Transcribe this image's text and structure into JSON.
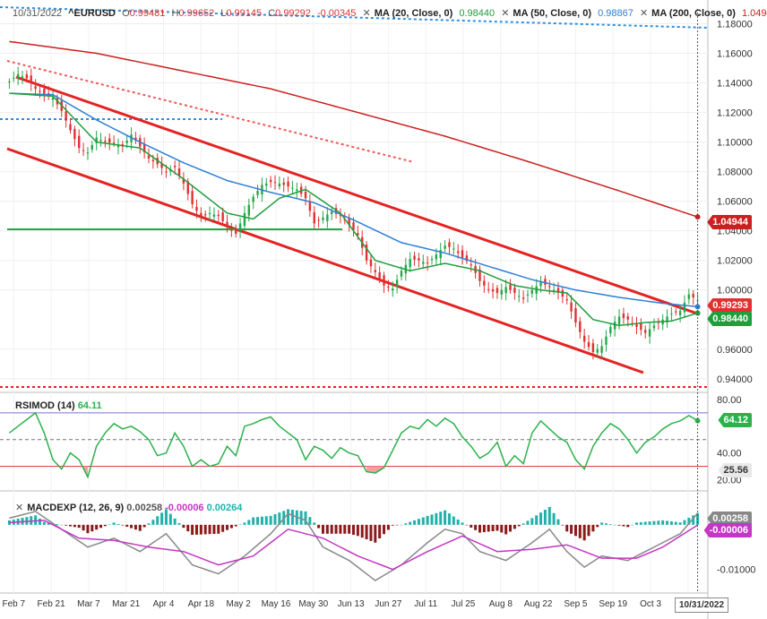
{
  "header": {
    "date": "10/31/2022",
    "symbol": "^EURUSD",
    "ohlc": {
      "open_label": "O",
      "open": "0.99481",
      "high_label": "H",
      "high": "0.99652",
      "low_label": "L",
      "low": "0.99145",
      "close_label": "C",
      "close": "0.99292",
      "change": "-0.00345"
    },
    "ma20": {
      "label": "MA (20, Close, 0)",
      "value": "0.98440"
    },
    "ma50": {
      "label": "MA (50, Close, 0)",
      "value": "0.98867"
    },
    "ma200": {
      "label": "MA (200, Close, 0)",
      "value": "1.04944"
    }
  },
  "rsi_header": {
    "label": "RSIMOD (14)",
    "value": "64.11"
  },
  "macd_header": {
    "label": "MACDEXP (12, 26, 9)",
    "v1": "0.00258",
    "v2": "-0.00006",
    "v3": "0.00264"
  },
  "badges": {
    "ma200": "1.04944",
    "close": "0.99293",
    "ma20": "0.98440",
    "rsi": "64.12",
    "rsi_low": "25.56",
    "macd": "0.00258",
    "signal": "-0.00006"
  },
  "cursor_date": "10/31/2022",
  "colors": {
    "candle_up": "#22a84a",
    "candle_down": "#e03131",
    "ma20": "#1f9e3c",
    "ma50": "#2f7fd6",
    "ma200": "#cc1f1f",
    "rsi": "#2bb24c",
    "macd": "#888888",
    "signal": "#c436c4",
    "hist_pos": "#20b2aa",
    "hist_neg": "#8b1a1a"
  },
  "chart_data": [
    {
      "type": "candlestick",
      "title": "^EURUSD",
      "x_ticks": [
        "Feb 7",
        "Feb 21",
        "Mar 7",
        "Mar 21",
        "Apr 4",
        "Apr 18",
        "May 2",
        "May 16",
        "May 30",
        "Jun 13",
        "Jun 27",
        "Jul 11",
        "Jul 25",
        "Aug 8",
        "Aug 22",
        "Sep 5",
        "Sep 19",
        "Oct 3",
        "Oct 17"
      ],
      "y_ticks": [
        "1.18000",
        "1.16000",
        "1.14000",
        "1.12000",
        "1.10000",
        "1.08000",
        "1.06000",
        "1.04000",
        "1.02000",
        "1.00000",
        "0.96000",
        "0.94000"
      ],
      "ylim": [
        0.932,
        1.19
      ],
      "close_anchors": [
        [
          0,
          1.141
        ],
        [
          2,
          1.146
        ],
        [
          4,
          1.143
        ],
        [
          6,
          1.136
        ],
        [
          8,
          1.132
        ],
        [
          10,
          1.13
        ],
        [
          12,
          1.121
        ],
        [
          14,
          1.108
        ],
        [
          16,
          1.096
        ],
        [
          18,
          1.093
        ],
        [
          20,
          1.103
        ],
        [
          22,
          1.1
        ],
        [
          24,
          1.099
        ],
        [
          26,
          1.097
        ],
        [
          28,
          1.105
        ],
        [
          30,
          1.097
        ],
        [
          32,
          1.089
        ],
        [
          34,
          1.085
        ],
        [
          36,
          1.08
        ],
        [
          38,
          1.083
        ],
        [
          40,
          1.072
        ],
        [
          42,
          1.058
        ],
        [
          44,
          1.049
        ],
        [
          46,
          1.052
        ],
        [
          48,
          1.05
        ],
        [
          50,
          1.043
        ],
        [
          52,
          1.038
        ],
        [
          54,
          1.052
        ],
        [
          56,
          1.063
        ],
        [
          58,
          1.071
        ],
        [
          60,
          1.073
        ],
        [
          62,
          1.072
        ],
        [
          64,
          1.07
        ],
        [
          66,
          1.068
        ],
        [
          68,
          1.062
        ],
        [
          70,
          1.045
        ],
        [
          72,
          1.049
        ],
        [
          74,
          1.053
        ],
        [
          76,
          1.05
        ],
        [
          78,
          1.044
        ],
        [
          80,
          1.037
        ],
        [
          82,
          1.02
        ],
        [
          84,
          1.012
        ],
        [
          86,
          1.003
        ],
        [
          88,
          1.001
        ],
        [
          90,
          1.013
        ],
        [
          92,
          1.021
        ],
        [
          94,
          1.02
        ],
        [
          96,
          1.018
        ],
        [
          98,
          1.024
        ],
        [
          100,
          1.03
        ],
        [
          102,
          1.028
        ],
        [
          104,
          1.022
        ],
        [
          106,
          1.017
        ],
        [
          108,
          1.006
        ],
        [
          110,
          1.0
        ],
        [
          112,
          0.998
        ],
        [
          114,
          1.002
        ],
        [
          116,
          0.998
        ],
        [
          118,
          0.994
        ],
        [
          120,
          1.0
        ],
        [
          122,
          1.005
        ],
        [
          124,
          1.002
        ],
        [
          126,
          0.998
        ],
        [
          128,
          0.993
        ],
        [
          130,
          0.978
        ],
        [
          132,
          0.965
        ],
        [
          134,
          0.958
        ],
        [
          136,
          0.962
        ],
        [
          138,
          0.975
        ],
        [
          140,
          0.982
        ],
        [
          142,
          0.98
        ],
        [
          144,
          0.975
        ],
        [
          146,
          0.971
        ],
        [
          148,
          0.976
        ],
        [
          150,
          0.98
        ],
        [
          152,
          0.984
        ],
        [
          154,
          0.986
        ],
        [
          156,
          0.997
        ],
        [
          158,
          0.9929
        ]
      ],
      "series": [
        {
          "name": "MA (20, Close, 0)",
          "values": [
            [
              0,
              1.133
            ],
            [
              10,
              1.131
            ],
            [
              20,
              1.1
            ],
            [
              30,
              1.096
            ],
            [
              40,
              1.075
            ],
            [
              50,
              1.052
            ],
            [
              56,
              1.048
            ],
            [
              62,
              1.062
            ],
            [
              68,
              1.068
            ],
            [
              76,
              1.052
            ],
            [
              84,
              1.02
            ],
            [
              92,
              1.013
            ],
            [
              100,
              1.018
            ],
            [
              108,
              1.013
            ],
            [
              116,
              1.003
            ],
            [
              122,
              1.0
            ],
            [
              128,
              0.998
            ],
            [
              134,
              0.98
            ],
            [
              140,
              0.976
            ],
            [
              146,
              0.978
            ],
            [
              152,
              0.979
            ],
            [
              158,
              0.9844
            ]
          ]
        },
        {
          "name": "MA (50, Close, 0)",
          "values": [
            [
              0,
              1.133
            ],
            [
              10,
              1.132
            ],
            [
              20,
              1.115
            ],
            [
              30,
              1.1
            ],
            [
              40,
              1.086
            ],
            [
              50,
              1.074
            ],
            [
              60,
              1.066
            ],
            [
              70,
              1.059
            ],
            [
              80,
              1.046
            ],
            [
              90,
              1.032
            ],
            [
              100,
              1.025
            ],
            [
              110,
              1.016
            ],
            [
              120,
              1.007
            ],
            [
              130,
              1.0
            ],
            [
              140,
              0.995
            ],
            [
              150,
              0.991
            ],
            [
              158,
              0.9887
            ]
          ]
        },
        {
          "name": "MA (200, Close, 0)",
          "values": [
            [
              0,
              1.168
            ],
            [
              20,
              1.16
            ],
            [
              40,
              1.148
            ],
            [
              60,
              1.136
            ],
            [
              80,
              1.12
            ],
            [
              100,
              1.104
            ],
            [
              120,
              1.086
            ],
            [
              140,
              1.067
            ],
            [
              158,
              1.0494
            ]
          ]
        }
      ]
    },
    {
      "type": "line",
      "title": "RSIMOD (14)",
      "y_ticks": [
        "80.00",
        "40.00",
        "20.00"
      ],
      "ylim": [
        17,
        84
      ],
      "levels": [
        70,
        50,
        30
      ],
      "values": [
        [
          0,
          55
        ],
        [
          4,
          65
        ],
        [
          6,
          70
        ],
        [
          8,
          55
        ],
        [
          10,
          35
        ],
        [
          12,
          28
        ],
        [
          14,
          40
        ],
        [
          16,
          35
        ],
        [
          18,
          22
        ],
        [
          20,
          45
        ],
        [
          22,
          55
        ],
        [
          24,
          62
        ],
        [
          26,
          58
        ],
        [
          28,
          60
        ],
        [
          30,
          56
        ],
        [
          32,
          50
        ],
        [
          34,
          38
        ],
        [
          36,
          40
        ],
        [
          38,
          55
        ],
        [
          40,
          45
        ],
        [
          42,
          30
        ],
        [
          44,
          35
        ],
        [
          46,
          30
        ],
        [
          48,
          32
        ],
        [
          50,
          45
        ],
        [
          52,
          38
        ],
        [
          54,
          60
        ],
        [
          56,
          62
        ],
        [
          58,
          65
        ],
        [
          60,
          67
        ],
        [
          62,
          60
        ],
        [
          64,
          55
        ],
        [
          66,
          50
        ],
        [
          68,
          35
        ],
        [
          70,
          45
        ],
        [
          72,
          42
        ],
        [
          74,
          36
        ],
        [
          76,
          44
        ],
        [
          78,
          40
        ],
        [
          80,
          38
        ],
        [
          82,
          26
        ],
        [
          84,
          25
        ],
        [
          86,
          29
        ],
        [
          88,
          42
        ],
        [
          90,
          55
        ],
        [
          92,
          60
        ],
        [
          94,
          58
        ],
        [
          96,
          65
        ],
        [
          98,
          60
        ],
        [
          100,
          66
        ],
        [
          102,
          62
        ],
        [
          104,
          52
        ],
        [
          106,
          45
        ],
        [
          108,
          36
        ],
        [
          110,
          40
        ],
        [
          112,
          48
        ],
        [
          114,
          30
        ],
        [
          116,
          38
        ],
        [
          118,
          32
        ],
        [
          120,
          55
        ],
        [
          122,
          64
        ],
        [
          124,
          58
        ],
        [
          126,
          52
        ],
        [
          128,
          48
        ],
        [
          130,
          35
        ],
        [
          132,
          28
        ],
        [
          134,
          45
        ],
        [
          136,
          55
        ],
        [
          138,
          62
        ],
        [
          140,
          58
        ],
        [
          142,
          50
        ],
        [
          144,
          40
        ],
        [
          146,
          48
        ],
        [
          148,
          52
        ],
        [
          150,
          58
        ],
        [
          152,
          62
        ],
        [
          154,
          64
        ],
        [
          156,
          68
        ],
        [
          158,
          64.11
        ]
      ]
    },
    {
      "type": "line",
      "title": "MACDEXP (12, 26, 9)",
      "y_ticks": [
        "-0.01000"
      ],
      "ylim": [
        -0.0145,
        0.006
      ],
      "series": [
        {
          "name": "MACD",
          "values": [
            [
              0,
              0.0015
            ],
            [
              6,
              0.003
            ],
            [
              12,
              -0.001
            ],
            [
              18,
              -0.005
            ],
            [
              24,
              -0.003
            ],
            [
              30,
              -0.006
            ],
            [
              36,
              -0.002
            ],
            [
              42,
              -0.009
            ],
            [
              48,
              -0.011
            ],
            [
              54,
              -0.007
            ],
            [
              60,
              -0.002
            ],
            [
              64,
              0.0025
            ],
            [
              68,
              0.001
            ],
            [
              72,
              -0.005
            ],
            [
              78,
              -0.008
            ],
            [
              84,
              -0.0125
            ],
            [
              90,
              -0.009
            ],
            [
              96,
              -0.004
            ],
            [
              100,
              -0.001
            ],
            [
              104,
              -0.002
            ],
            [
              108,
              -0.006
            ],
            [
              114,
              -0.008
            ],
            [
              120,
              -0.004
            ],
            [
              124,
              -0.001
            ],
            [
              128,
              -0.006
            ],
            [
              132,
              -0.0095
            ],
            [
              136,
              -0.007
            ],
            [
              142,
              -0.008
            ],
            [
              148,
              -0.005
            ],
            [
              154,
              -0.002
            ],
            [
              158,
              0.00258
            ]
          ]
        },
        {
          "name": "Signal",
          "values": [
            [
              0,
              0.0005
            ],
            [
              8,
              0.001
            ],
            [
              16,
              -0.003
            ],
            [
              24,
              -0.0035
            ],
            [
              32,
              -0.005
            ],
            [
              40,
              -0.006
            ],
            [
              48,
              -0.009
            ],
            [
              56,
              -0.007
            ],
            [
              64,
              -0.001
            ],
            [
              72,
              -0.003
            ],
            [
              80,
              -0.007
            ],
            [
              88,
              -0.01
            ],
            [
              96,
              -0.006
            ],
            [
              104,
              -0.0025
            ],
            [
              112,
              -0.006
            ],
            [
              120,
              -0.0055
            ],
            [
              128,
              -0.0045
            ],
            [
              136,
              -0.0075
            ],
            [
              144,
              -0.0075
            ],
            [
              150,
              -0.005
            ],
            [
              158,
              -6e-05
            ]
          ]
        }
      ]
    }
  ]
}
